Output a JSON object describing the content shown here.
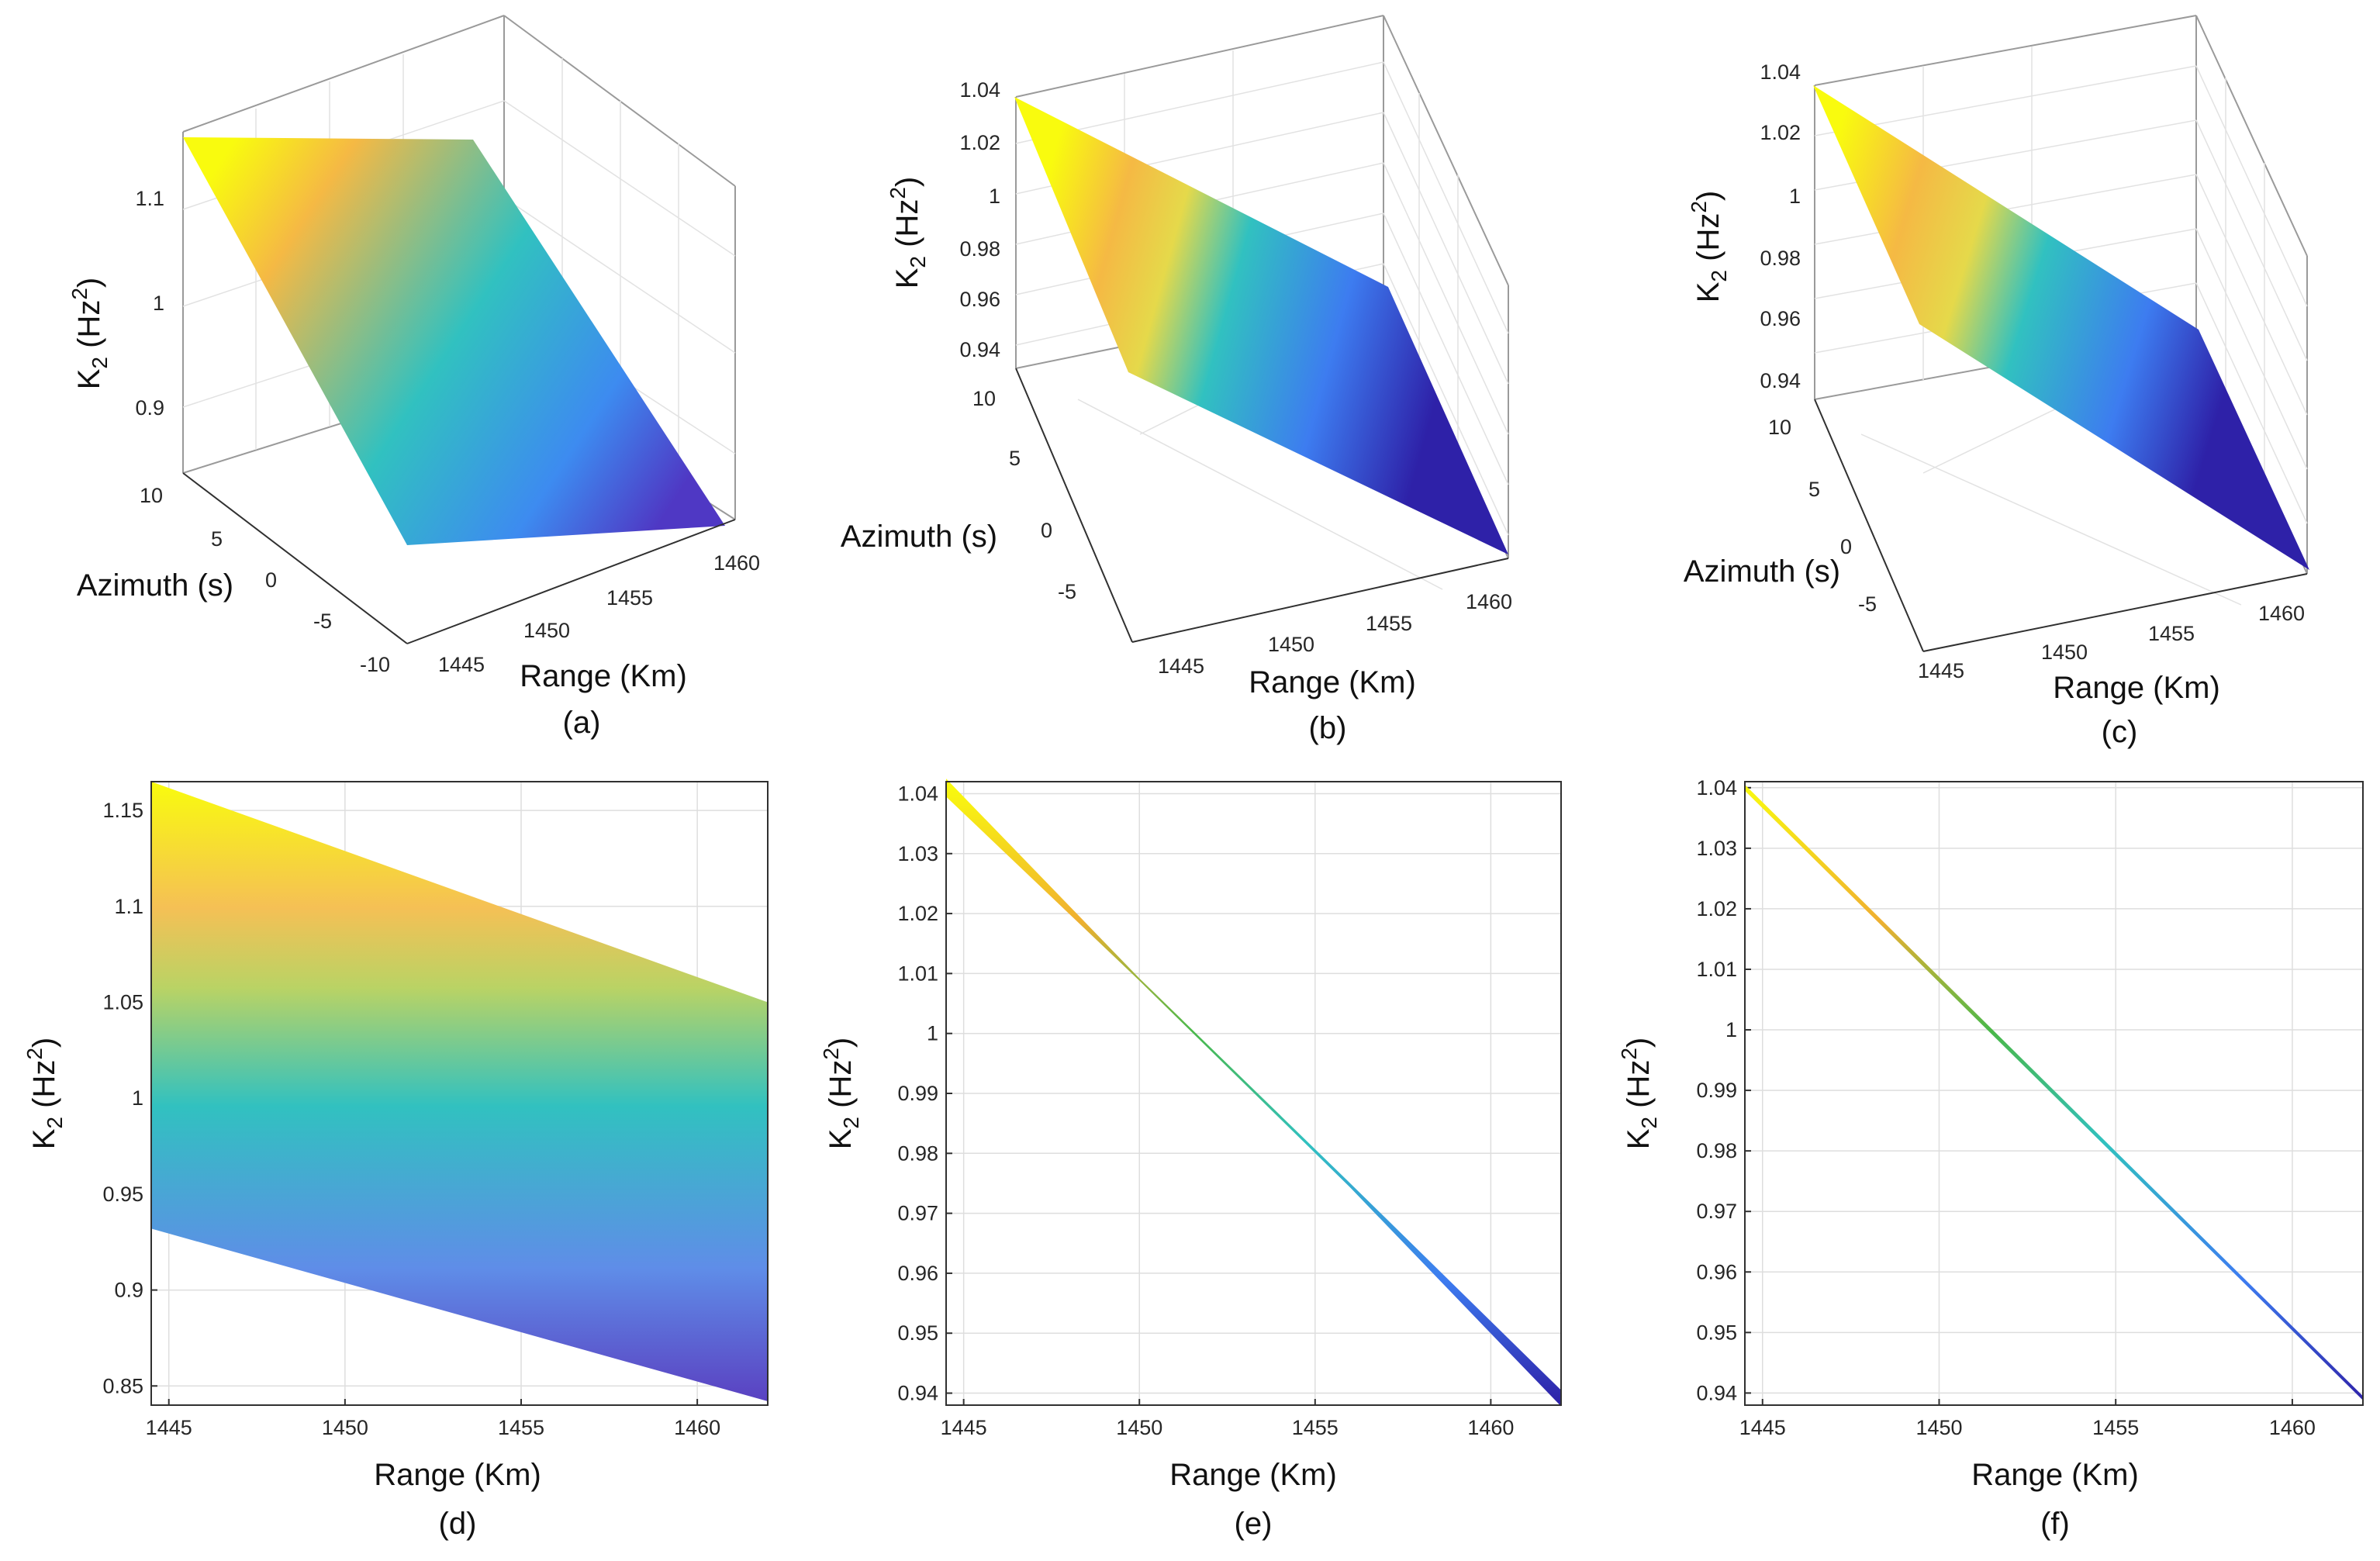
{
  "figure": {
    "colors": {
      "yellow": "#f9fb0e",
      "orange": "#f5b944",
      "cyan": "#31c1c0",
      "blue": "#3d7cf0",
      "purple": "#4f38c4",
      "grid": "#dedede",
      "axis": "#303030"
    }
  },
  "chart_data": [
    {
      "id": "a",
      "type": "surface3d",
      "caption": "(a)",
      "title": "",
      "xlabel": "Range (Km)",
      "ylabel": "Azimuth (s)",
      "zlabel_main": "K",
      "zlabel_sub": "2",
      "zlabel_unit": " (Hz",
      "zlabel_sup": "2",
      "zlabel_close": ")",
      "xlim": [
        1444.5,
        1462
      ],
      "ylim": [
        -10,
        10
      ],
      "zlim": [
        0.84,
        1.17
      ],
      "xticks": [
        "1445",
        "1450",
        "1455",
        "1460"
      ],
      "yticks": [
        "10",
        "5",
        "0",
        "-5",
        "-10"
      ],
      "zticks": [
        "0.9",
        "1",
        "1.1"
      ],
      "corners": {
        "r1445_az10": 1.165,
        "r1445_azm10": 0.932,
        "r1462_az10": 1.05,
        "r1462_azm10": 0.842
      }
    },
    {
      "id": "b",
      "type": "surface3d",
      "caption": "(b)",
      "title": "",
      "xlabel": "Range (Km)",
      "ylabel": "Azimuth (s)",
      "zlabel_main": "K",
      "zlabel_sub": "2",
      "zlabel_unit": " (Hz",
      "zlabel_sup": "2",
      "zlabel_close": ")",
      "xlim": [
        1444.5,
        1462
      ],
      "ylim": [
        -10,
        10
      ],
      "zlim": [
        0.938,
        1.04
      ],
      "xticks": [
        "1445",
        "1450",
        "1455",
        "1460"
      ],
      "yticks": [
        "10",
        "5",
        "0",
        "-5"
      ],
      "zticks": [
        "0.94",
        "0.96",
        "0.98",
        "1",
        "1.02",
        "1.04"
      ],
      "corners": {
        "r1445_az10": 1.041,
        "r1445_azm10": 1.038,
        "r1462_az10": 0.939,
        "r1462_azm10": 0.938
      }
    },
    {
      "id": "c",
      "type": "surface3d",
      "caption": "(c)",
      "title": "",
      "xlabel": "Range (Km)",
      "ylabel": "Azimuth (s)",
      "zlabel_main": "K",
      "zlabel_sub": "2",
      "zlabel_unit": " (Hz",
      "zlabel_sup": "2",
      "zlabel_close": ")",
      "xlim": [
        1444.5,
        1462
      ],
      "ylim": [
        -10,
        10
      ],
      "zlim": [
        0.938,
        1.04
      ],
      "xticks": [
        "1445",
        "1450",
        "1455",
        "1460"
      ],
      "yticks": [
        "10",
        "5",
        "0",
        "-5"
      ],
      "zticks": [
        "0.94",
        "0.96",
        "0.98",
        "1",
        "1.02",
        "1.04"
      ],
      "corners": {
        "r1445_az10": 1.0405,
        "r1445_azm10": 1.039,
        "r1462_az10": 0.9395,
        "r1462_azm10": 0.939
      }
    },
    {
      "id": "d",
      "type": "line",
      "caption": "(d)",
      "title": "",
      "xlabel": "Range (Km)",
      "ylabel_main": "K",
      "ylabel_sub": "2",
      "ylabel_unit": " (Hz",
      "ylabel_sup": "2",
      "ylabel_close": ")",
      "xlim": [
        1444.5,
        1462
      ],
      "ylim": [
        0.84,
        1.165
      ],
      "xticks": [
        "1445",
        "1450",
        "1455",
        "1460"
      ],
      "yticks": [
        "0.85",
        "0.9",
        "0.95",
        "1",
        "1.05",
        "1.1",
        "1.15"
      ],
      "grid": true,
      "band": {
        "x": [
          1444.5,
          1462
        ],
        "upper": [
          1.165,
          1.05
        ],
        "lower": [
          0.932,
          0.842
        ]
      }
    },
    {
      "id": "e",
      "type": "line",
      "caption": "(e)",
      "title": "",
      "xlabel": "Range (Km)",
      "ylabel_main": "K",
      "ylabel_sub": "2",
      "ylabel_unit": " (Hz",
      "ylabel_sup": "2",
      "ylabel_close": ")",
      "xlim": [
        1444.5,
        1462
      ],
      "ylim": [
        0.938,
        1.042
      ],
      "xticks": [
        "1445",
        "1450",
        "1455",
        "1460"
      ],
      "yticks": [
        "0.94",
        "0.95",
        "0.96",
        "0.97",
        "0.98",
        "0.99",
        "1",
        "1.01",
        "1.02",
        "1.03",
        "1.04"
      ],
      "grid": true,
      "band": {
        "x": [
          1444.5,
          1450,
          1456,
          1462
        ],
        "upper": [
          1.0425,
          1.0092,
          0.975,
          0.9405
        ],
        "lower": [
          1.0395,
          1.0088,
          0.9743,
          0.9378
        ]
      }
    },
    {
      "id": "f",
      "type": "line",
      "caption": "(f)",
      "title": "",
      "xlabel": "Range (Km)",
      "ylabel_main": "K",
      "ylabel_sub": "2",
      "ylabel_unit": " (Hz",
      "ylabel_sup": "2",
      "ylabel_close": ")",
      "xlim": [
        1444.5,
        1462
      ],
      "ylim": [
        0.938,
        1.041
      ],
      "xticks": [
        "1445",
        "1450",
        "1455",
        "1460"
      ],
      "yticks": [
        "0.94",
        "0.95",
        "0.96",
        "0.97",
        "0.98",
        "0.99",
        "1",
        "1.01",
        "1.02",
        "1.03",
        "1.04"
      ],
      "grid": true,
      "band": {
        "x": [
          1444.5,
          1462
        ],
        "upper": [
          1.0405,
          0.9395
        ],
        "lower": [
          1.0395,
          0.9388
        ]
      }
    }
  ]
}
